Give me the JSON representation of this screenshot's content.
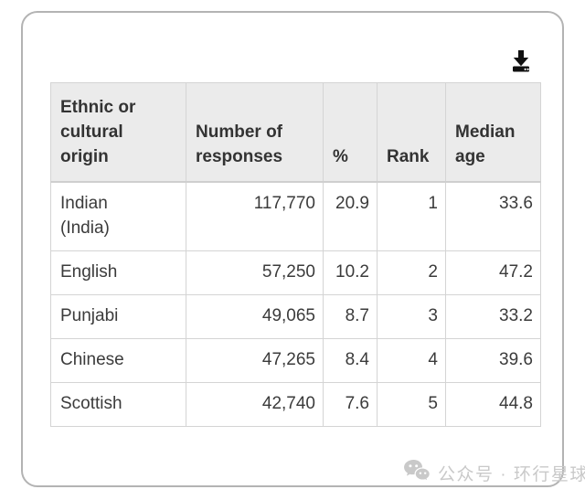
{
  "icons": {
    "download": "download-icon",
    "wechat": "wechat-icon"
  },
  "colors": {
    "card_border": "#b3b3b3",
    "table_border": "#d4d4d4",
    "header_background": "#ebebeb",
    "text": "#3b3b3b",
    "watermark_gray": "#c9c9c9",
    "download_icon": "#111111"
  },
  "watermark": {
    "text": "公众号 · 环行星球"
  },
  "chart_data": {
    "type": "table",
    "columns": [
      "Ethnic or\ncultural\norigin",
      "Number of\nresponses",
      "%",
      "Rank",
      "Median\nage"
    ],
    "columns_plain": [
      "Ethnic or cultural origin",
      "Number of responses",
      "%",
      "Rank",
      "Median age"
    ],
    "rows": [
      [
        "Indian\n(India)",
        "117,770",
        "20.9",
        "1",
        "33.6"
      ],
      [
        "English",
        "57,250",
        "10.2",
        "2",
        "47.2"
      ],
      [
        "Punjabi",
        "49,065",
        "8.7",
        "3",
        "33.2"
      ],
      [
        "Chinese",
        "47,265",
        "8.4",
        "4",
        "39.6"
      ],
      [
        "Scottish",
        "42,740",
        "7.6",
        "5",
        "44.8"
      ]
    ],
    "rows_plain": [
      {
        "origin": "Indian (India)",
        "responses": 117770,
        "percent": 20.9,
        "rank": 1,
        "median_age": 33.6
      },
      {
        "origin": "English",
        "responses": 57250,
        "percent": 10.2,
        "rank": 2,
        "median_age": 47.2
      },
      {
        "origin": "Punjabi",
        "responses": 49065,
        "percent": 8.7,
        "rank": 3,
        "median_age": 33.2
      },
      {
        "origin": "Chinese",
        "responses": 47265,
        "percent": 8.4,
        "rank": 4,
        "median_age": 39.6
      },
      {
        "origin": "Scottish",
        "responses": 42740,
        "percent": 7.6,
        "rank": 5,
        "median_age": 44.8
      }
    ]
  }
}
